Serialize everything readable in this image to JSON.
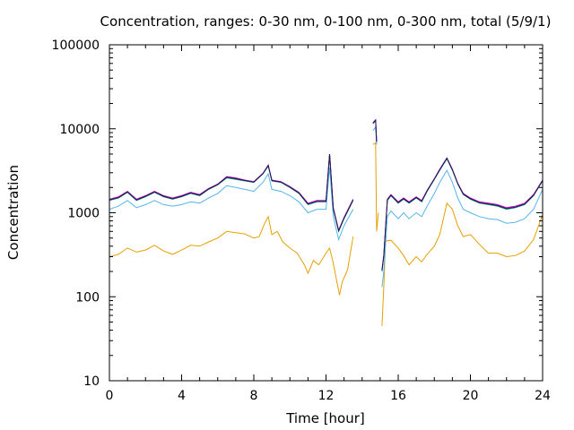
{
  "chart_data": {
    "type": "line",
    "title": "Concentration, ranges: 0-30 nm, 0-100 nm, 0-300 nm, total (5/9/1)",
    "xlabel": "Time [hour]",
    "ylabel": "Concentration",
    "xlim": [
      0,
      24
    ],
    "ylim": [
      10,
      100000
    ],
    "yscale": "log",
    "grid": false,
    "legend": "none",
    "x_ticks": [
      0,
      4,
      8,
      12,
      16,
      20,
      24
    ],
    "x_tick_labels": [
      "0",
      "4",
      "8",
      "12",
      "16",
      "20",
      "24"
    ],
    "y_ticks": [
      10,
      100,
      1000,
      10000,
      100000
    ],
    "y_tick_labels": [
      "10",
      "100",
      "1000",
      "10000",
      "100000"
    ],
    "series": [
      {
        "color": "#e69f00",
        "points": [
          [
            0,
            300
          ],
          [
            0.5,
            320
          ],
          [
            1,
            380
          ],
          [
            1.5,
            340
          ],
          [
            2,
            360
          ],
          [
            2.5,
            410
          ],
          [
            3,
            350
          ],
          [
            3.5,
            320
          ],
          [
            4,
            360
          ],
          [
            4.5,
            410
          ],
          [
            5,
            400
          ],
          [
            5.5,
            450
          ],
          [
            6,
            500
          ],
          [
            6.5,
            600
          ],
          [
            7,
            580
          ],
          [
            7.5,
            560
          ],
          [
            8,
            500
          ],
          [
            8.3,
            520
          ],
          [
            8.6,
            750
          ],
          [
            8.8,
            900
          ],
          [
            9,
            550
          ],
          [
            9.3,
            600
          ],
          [
            9.6,
            450
          ],
          [
            10,
            380
          ],
          [
            10.4,
            330
          ],
          [
            10.8,
            240
          ],
          [
            11,
            190
          ],
          [
            11.3,
            270
          ],
          [
            11.6,
            240
          ],
          [
            12,
            330
          ],
          [
            12.2,
            380
          ],
          [
            12.4,
            250
          ],
          [
            12.6,
            150
          ],
          [
            12.75,
            105
          ],
          [
            12.9,
            150
          ],
          [
            13.2,
            210
          ],
          [
            13.5,
            520
          ],
          [
            "gap",
            null
          ],
          [
            14.6,
            6500
          ],
          [
            14.75,
            6800
          ],
          [
            14.8,
            600
          ],
          [
            14.9,
            1000
          ],
          [
            "gap",
            null
          ],
          [
            15.1,
            45
          ],
          [
            15.2,
            130
          ],
          [
            15.3,
            460
          ],
          [
            15.6,
            470
          ],
          [
            16,
            380
          ],
          [
            16.3,
            310
          ],
          [
            16.6,
            240
          ],
          [
            17,
            300
          ],
          [
            17.3,
            260
          ],
          [
            17.6,
            320
          ],
          [
            18,
            400
          ],
          [
            18.3,
            550
          ],
          [
            18.7,
            1300
          ],
          [
            19,
            1100
          ],
          [
            19.3,
            700
          ],
          [
            19.6,
            520
          ],
          [
            20,
            550
          ],
          [
            20.5,
            420
          ],
          [
            21,
            330
          ],
          [
            21.5,
            330
          ],
          [
            22,
            300
          ],
          [
            22.5,
            310
          ],
          [
            23,
            350
          ],
          [
            23.5,
            480
          ],
          [
            24,
            950
          ]
        ]
      },
      {
        "color": "#56b4e9",
        "points": [
          [
            0,
            1100
          ],
          [
            0.5,
            1200
          ],
          [
            1,
            1400
          ],
          [
            1.5,
            1150
          ],
          [
            2,
            1250
          ],
          [
            2.5,
            1400
          ],
          [
            3,
            1250
          ],
          [
            3.5,
            1200
          ],
          [
            4,
            1250
          ],
          [
            4.5,
            1350
          ],
          [
            5,
            1300
          ],
          [
            5.5,
            1500
          ],
          [
            6,
            1700
          ],
          [
            6.5,
            2100
          ],
          [
            7,
            2000
          ],
          [
            7.5,
            1900
          ],
          [
            8,
            1800
          ],
          [
            8.5,
            2300
          ],
          [
            8.8,
            2900
          ],
          [
            9,
            1900
          ],
          [
            9.5,
            1800
          ],
          [
            10,
            1600
          ],
          [
            10.5,
            1350
          ],
          [
            11,
            1000
          ],
          [
            11.5,
            1100
          ],
          [
            12,
            1100
          ],
          [
            12.2,
            3500
          ],
          [
            12.4,
            900
          ],
          [
            12.7,
            480
          ],
          [
            13,
            700
          ],
          [
            13.5,
            1100
          ],
          [
            "gap",
            null
          ],
          [
            14.6,
            9500
          ],
          [
            14.75,
            10500
          ],
          [
            14.8,
            6500
          ],
          [
            "gap",
            null
          ],
          [
            15.1,
            130
          ],
          [
            15.2,
            200
          ],
          [
            15.4,
            900
          ],
          [
            15.6,
            1050
          ],
          [
            16,
            850
          ],
          [
            16.3,
            1000
          ],
          [
            16.6,
            850
          ],
          [
            17,
            1000
          ],
          [
            17.3,
            900
          ],
          [
            17.6,
            1200
          ],
          [
            18,
            1700
          ],
          [
            18.3,
            2300
          ],
          [
            18.7,
            3200
          ],
          [
            19,
            2300
          ],
          [
            19.3,
            1500
          ],
          [
            19.6,
            1100
          ],
          [
            20,
            1000
          ],
          [
            20.5,
            900
          ],
          [
            21,
            850
          ],
          [
            21.5,
            830
          ],
          [
            22,
            750
          ],
          [
            22.5,
            770
          ],
          [
            23,
            850
          ],
          [
            23.5,
            1100
          ],
          [
            24,
            1900
          ]
        ]
      },
      {
        "color": "#009e73",
        "points": [
          [
            0,
            1400
          ],
          [
            0.5,
            1500
          ],
          [
            1,
            1750
          ],
          [
            1.5,
            1400
          ],
          [
            2,
            1550
          ],
          [
            2.5,
            1750
          ],
          [
            3,
            1550
          ],
          [
            3.5,
            1450
          ],
          [
            4,
            1550
          ],
          [
            4.5,
            1700
          ],
          [
            5,
            1600
          ],
          [
            5.5,
            1900
          ],
          [
            6,
            2150
          ],
          [
            6.5,
            2600
          ],
          [
            7,
            2500
          ],
          [
            7.5,
            2400
          ],
          [
            8,
            2300
          ],
          [
            8.5,
            2900
          ],
          [
            8.8,
            3600
          ],
          [
            9,
            2400
          ],
          [
            9.5,
            2300
          ],
          [
            10,
            2000
          ],
          [
            10.5,
            1700
          ],
          [
            11,
            1250
          ],
          [
            11.5,
            1350
          ],
          [
            12,
            1350
          ],
          [
            12.2,
            5000
          ],
          [
            12.4,
            1100
          ],
          [
            12.7,
            600
          ],
          [
            13,
            850
          ],
          [
            13.5,
            1400
          ],
          [
            "gap",
            null
          ],
          [
            14.6,
            11500
          ],
          [
            14.75,
            12500
          ],
          [
            14.8,
            7000
          ],
          [
            "gap",
            null
          ],
          [
            15.1,
            200
          ],
          [
            15.2,
            300
          ],
          [
            15.4,
            1400
          ],
          [
            15.6,
            1600
          ],
          [
            16,
            1300
          ],
          [
            16.3,
            1450
          ],
          [
            16.6,
            1300
          ],
          [
            17,
            1500
          ],
          [
            17.3,
            1350
          ],
          [
            17.6,
            1800
          ],
          [
            18,
            2500
          ],
          [
            18.3,
            3200
          ],
          [
            18.7,
            4400
          ],
          [
            19,
            3200
          ],
          [
            19.3,
            2200
          ],
          [
            19.6,
            1650
          ],
          [
            20,
            1450
          ],
          [
            20.5,
            1300
          ],
          [
            21,
            1250
          ],
          [
            21.5,
            1200
          ],
          [
            22,
            1100
          ],
          [
            22.5,
            1150
          ],
          [
            23,
            1250
          ],
          [
            23.5,
            1600
          ],
          [
            24,
            2400
          ]
        ]
      },
      {
        "color": "#cc00cc",
        "points": [
          [
            0,
            1450
          ],
          [
            0.5,
            1550
          ],
          [
            1,
            1800
          ],
          [
            1.5,
            1450
          ],
          [
            2,
            1600
          ],
          [
            2.5,
            1800
          ],
          [
            3,
            1600
          ],
          [
            3.5,
            1500
          ],
          [
            4,
            1600
          ],
          [
            4.5,
            1750
          ],
          [
            5,
            1650
          ],
          [
            5.5,
            1950
          ],
          [
            6,
            2200
          ],
          [
            6.5,
            2700
          ],
          [
            7,
            2600
          ],
          [
            7.5,
            2450
          ],
          [
            8,
            2350
          ],
          [
            8.5,
            2950
          ],
          [
            8.8,
            3700
          ],
          [
            9,
            2450
          ],
          [
            9.5,
            2350
          ],
          [
            10,
            2050
          ],
          [
            10.5,
            1750
          ],
          [
            11,
            1300
          ],
          [
            11.5,
            1400
          ],
          [
            12,
            1400
          ],
          [
            12.2,
            5000
          ],
          [
            12.4,
            1150
          ],
          [
            12.7,
            620
          ],
          [
            13,
            880
          ],
          [
            13.5,
            1450
          ],
          [
            "gap",
            null
          ],
          [
            14.6,
            11800
          ],
          [
            14.75,
            12800
          ],
          [
            14.8,
            7100
          ],
          [
            "gap",
            null
          ],
          [
            15.1,
            210
          ],
          [
            15.2,
            310
          ],
          [
            15.4,
            1450
          ],
          [
            15.6,
            1650
          ],
          [
            16,
            1350
          ],
          [
            16.3,
            1500
          ],
          [
            16.6,
            1350
          ],
          [
            17,
            1550
          ],
          [
            17.3,
            1400
          ],
          [
            17.6,
            1850
          ],
          [
            18,
            2550
          ],
          [
            18.3,
            3300
          ],
          [
            18.7,
            4500
          ],
          [
            19,
            3300
          ],
          [
            19.3,
            2250
          ],
          [
            19.6,
            1700
          ],
          [
            20,
            1500
          ],
          [
            20.5,
            1350
          ],
          [
            21,
            1300
          ],
          [
            21.5,
            1250
          ],
          [
            22,
            1150
          ],
          [
            22.5,
            1200
          ],
          [
            23,
            1300
          ],
          [
            23.5,
            1650
          ],
          [
            24,
            2450
          ]
        ]
      },
      {
        "color": "#1a1a4e",
        "points": [
          [
            0,
            1420
          ],
          [
            0.5,
            1520
          ],
          [
            1,
            1770
          ],
          [
            1.5,
            1420
          ],
          [
            2,
            1570
          ],
          [
            2.5,
            1770
          ],
          [
            3,
            1570
          ],
          [
            3.5,
            1470
          ],
          [
            4,
            1570
          ],
          [
            4.5,
            1720
          ],
          [
            5,
            1620
          ],
          [
            5.5,
            1920
          ],
          [
            6,
            2170
          ],
          [
            6.5,
            2650
          ],
          [
            7,
            2550
          ],
          [
            7.5,
            2420
          ],
          [
            8,
            2320
          ],
          [
            8.5,
            2920
          ],
          [
            8.8,
            3650
          ],
          [
            9,
            2420
          ],
          [
            9.5,
            2320
          ],
          [
            10,
            2020
          ],
          [
            10.5,
            1720
          ],
          [
            11,
            1270
          ],
          [
            11.5,
            1370
          ],
          [
            12,
            1370
          ],
          [
            12.2,
            5000
          ],
          [
            12.4,
            1120
          ],
          [
            12.7,
            610
          ],
          [
            13,
            860
          ],
          [
            13.5,
            1420
          ],
          [
            "gap",
            null
          ],
          [
            14.6,
            11600
          ],
          [
            14.75,
            12600
          ],
          [
            14.8,
            7000
          ],
          [
            "gap",
            null
          ],
          [
            15.1,
            205
          ],
          [
            15.2,
            305
          ],
          [
            15.4,
            1420
          ],
          [
            15.6,
            1620
          ],
          [
            16,
            1320
          ],
          [
            16.3,
            1470
          ],
          [
            16.6,
            1320
          ],
          [
            17,
            1520
          ],
          [
            17.3,
            1370
          ],
          [
            17.6,
            1820
          ],
          [
            18,
            2520
          ],
          [
            18.3,
            3250
          ],
          [
            18.7,
            4450
          ],
          [
            19,
            3250
          ],
          [
            19.3,
            2220
          ],
          [
            19.6,
            1670
          ],
          [
            20,
            1470
          ],
          [
            20.5,
            1320
          ],
          [
            21,
            1270
          ],
          [
            21.5,
            1220
          ],
          [
            22,
            1120
          ],
          [
            22.5,
            1170
          ],
          [
            23,
            1270
          ],
          [
            23.5,
            1620
          ],
          [
            24,
            2420
          ]
        ]
      }
    ]
  }
}
